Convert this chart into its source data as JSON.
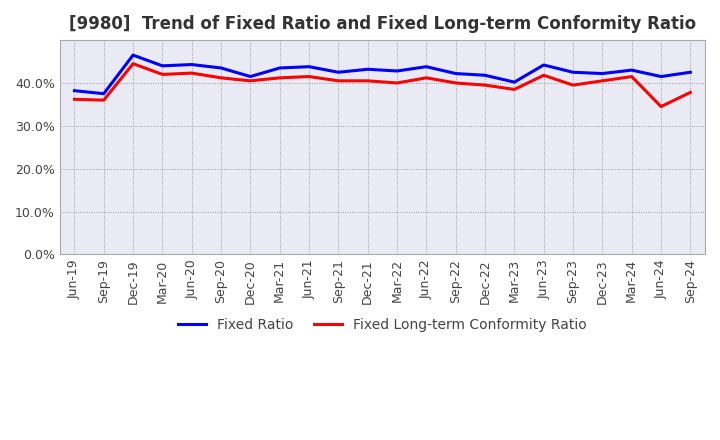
{
  "title": "[9980]  Trend of Fixed Ratio and Fixed Long-term Conformity Ratio",
  "x_labels": [
    "Jun-19",
    "Sep-19",
    "Dec-19",
    "Mar-20",
    "Jun-20",
    "Sep-20",
    "Dec-20",
    "Mar-21",
    "Jun-21",
    "Sep-21",
    "Dec-21",
    "Mar-22",
    "Jun-22",
    "Sep-22",
    "Dec-22",
    "Mar-23",
    "Jun-23",
    "Sep-23",
    "Dec-23",
    "Mar-24",
    "Jun-24",
    "Sep-24"
  ],
  "fixed_ratio": [
    38.2,
    37.5,
    46.5,
    44.0,
    44.3,
    43.5,
    41.5,
    43.5,
    43.8,
    42.5,
    43.2,
    42.8,
    43.8,
    42.2,
    41.8,
    40.2,
    44.2,
    42.5,
    42.2,
    43.0,
    41.5,
    42.5
  ],
  "fixed_lt_ratio": [
    36.2,
    36.0,
    44.5,
    42.0,
    42.3,
    41.2,
    40.5,
    41.2,
    41.5,
    40.5,
    40.5,
    40.0,
    41.2,
    40.0,
    39.5,
    38.5,
    41.8,
    39.5,
    40.5,
    41.5,
    34.5,
    37.8
  ],
  "fixed_ratio_color": "#0000ff",
  "fixed_lt_ratio_color": "#ff0000",
  "ylim": [
    0,
    50
  ],
  "yticks": [
    0,
    10,
    20,
    30,
    40
  ],
  "plot_bg_color": "#eaeaf4",
  "fig_bg_color": "#ffffff",
  "grid_color": "#888888",
  "title_fontsize": 12,
  "legend_fontsize": 10,
  "tick_fontsize": 9,
  "line_width": 2.2
}
